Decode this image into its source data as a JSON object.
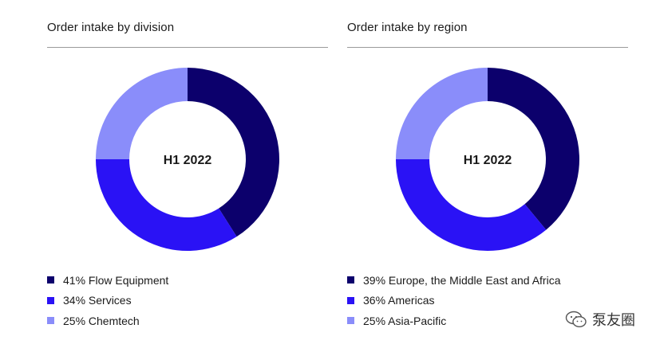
{
  "chart_data": [
    {
      "type": "pie",
      "title": "Order intake by division",
      "center_label": "H1 2022",
      "slices": [
        {
          "label": "Flow Equipment",
          "percent_text": "41%",
          "value": 41,
          "color": "#0c006c"
        },
        {
          "label": "Services",
          "percent_text": "34%",
          "value": 34,
          "color": "#2a12f5"
        },
        {
          "label": "Chemtech",
          "percent_text": "25%",
          "value": 25,
          "color": "#8a8dfa"
        }
      ]
    },
    {
      "type": "pie",
      "title": "Order intake by region",
      "center_label": "H1 2022",
      "slices": [
        {
          "label": "Europe, the Middle East and Africa",
          "percent_text": "39%",
          "value": 39,
          "color": "#0c006c"
        },
        {
          "label": "Americas",
          "percent_text": "36%",
          "value": 36,
          "color": "#2a12f5"
        },
        {
          "label": "Asia-Pacific",
          "percent_text": "25%",
          "value": 25,
          "color": "#8a8dfa"
        }
      ]
    }
  ],
  "watermark": {
    "text": "泵友圈",
    "icon": "wechat-icon"
  }
}
